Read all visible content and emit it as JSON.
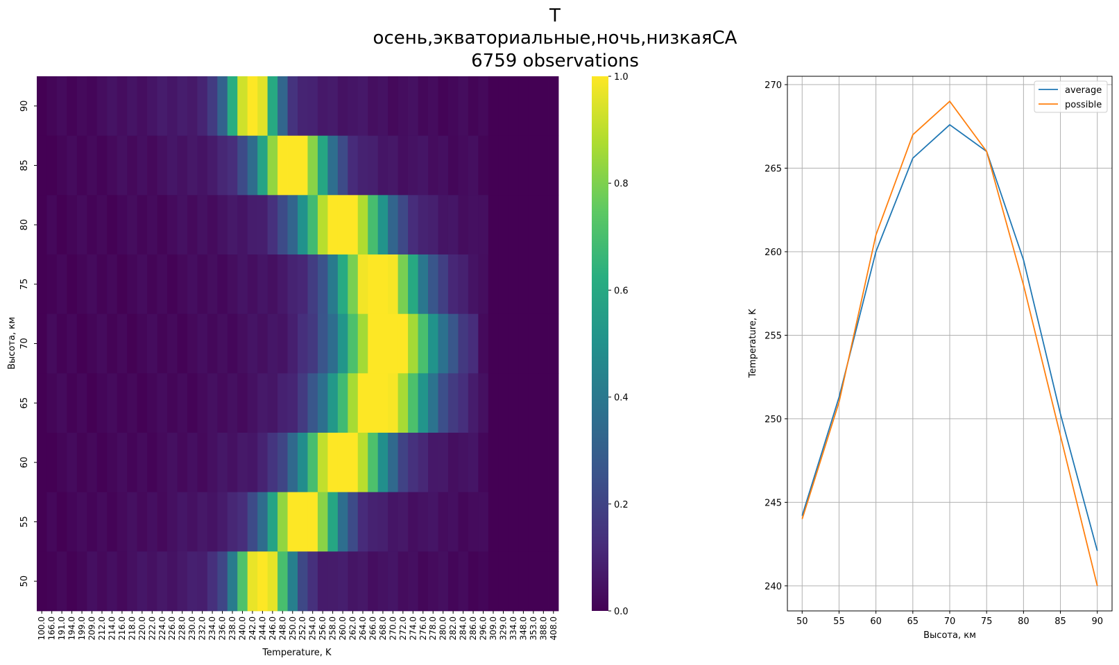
{
  "title_lines": [
    "T",
    "осень,экваториальные,ночь,низкаяСА",
    "6759 observations"
  ],
  "chart_data": [
    {
      "type": "heatmap",
      "xlabel": "Temperature, K",
      "ylabel": "Высота, км",
      "x_ticks": [
        "100.0",
        "166.0",
        "191.0",
        "194.0",
        "199.0",
        "209.0",
        "212.0",
        "214.0",
        "216.0",
        "218.0",
        "220.0",
        "222.0",
        "224.0",
        "226.0",
        "228.0",
        "230.0",
        "232.0",
        "234.0",
        "236.0",
        "238.0",
        "240.0",
        "242.0",
        "244.0",
        "246.0",
        "248.0",
        "250.0",
        "252.0",
        "254.0",
        "256.0",
        "258.0",
        "260.0",
        "262.0",
        "264.0",
        "266.0",
        "268.0",
        "270.0",
        "272.0",
        "274.0",
        "276.0",
        "278.0",
        "280.0",
        "282.0",
        "284.0",
        "286.0",
        "296.0",
        "309.0",
        "329.0",
        "334.0",
        "348.0",
        "353.0",
        "388.0",
        "408.0"
      ],
      "y_ticks": [
        "90",
        "85",
        "80",
        "75",
        "70",
        "65",
        "60",
        "55",
        "50"
      ],
      "colorbar": {
        "ticks": [
          "1.0",
          "0.8",
          "0.6",
          "0.4",
          "0.2",
          "0.0"
        ],
        "range": [
          0,
          1
        ],
        "colormap": "viridis"
      },
      "peaks": [
        {
          "height": 90,
          "temperature": 242,
          "width": 3.5
        },
        {
          "height": 85,
          "temperature": 250,
          "width": 5
        },
        {
          "height": 80,
          "temperature": 260,
          "width": 6
        },
        {
          "height": 75,
          "temperature": 267,
          "width": 6
        },
        {
          "height": 70,
          "temperature": 269,
          "width": 7
        },
        {
          "height": 65,
          "temperature": 267,
          "width": 7
        },
        {
          "height": 60,
          "temperature": 260,
          "width": 6
        },
        {
          "height": 55,
          "temperature": 252,
          "width": 5
        },
        {
          "height": 50,
          "temperature": 244,
          "width": 4
        }
      ]
    },
    {
      "type": "line",
      "xlabel": "Высота, км",
      "ylabel": "Temperature, K",
      "x": [
        50,
        55,
        60,
        65,
        70,
        75,
        80,
        85,
        90
      ],
      "xlim": [
        48.0,
        92.0
      ],
      "ylim": [
        238.5,
        270.5
      ],
      "x_ticks": [
        "50",
        "55",
        "60",
        "65",
        "70",
        "75",
        "80",
        "85",
        "90"
      ],
      "y_ticks": [
        "270",
        "265",
        "260",
        "255",
        "250",
        "245",
        "240"
      ],
      "grid": true,
      "legend_position": "top-right",
      "series": [
        {
          "name": "average",
          "color": "#1f77b4",
          "values": [
            244.2,
            251.3,
            260.0,
            265.6,
            267.6,
            266.0,
            259.5,
            250.3,
            242.1
          ]
        },
        {
          "name": "possible",
          "color": "#ff7f0e",
          "values": [
            244.0,
            251.0,
            261.0,
            267.0,
            269.0,
            266.0,
            258.0,
            249.0,
            240.0
          ]
        }
      ]
    }
  ]
}
